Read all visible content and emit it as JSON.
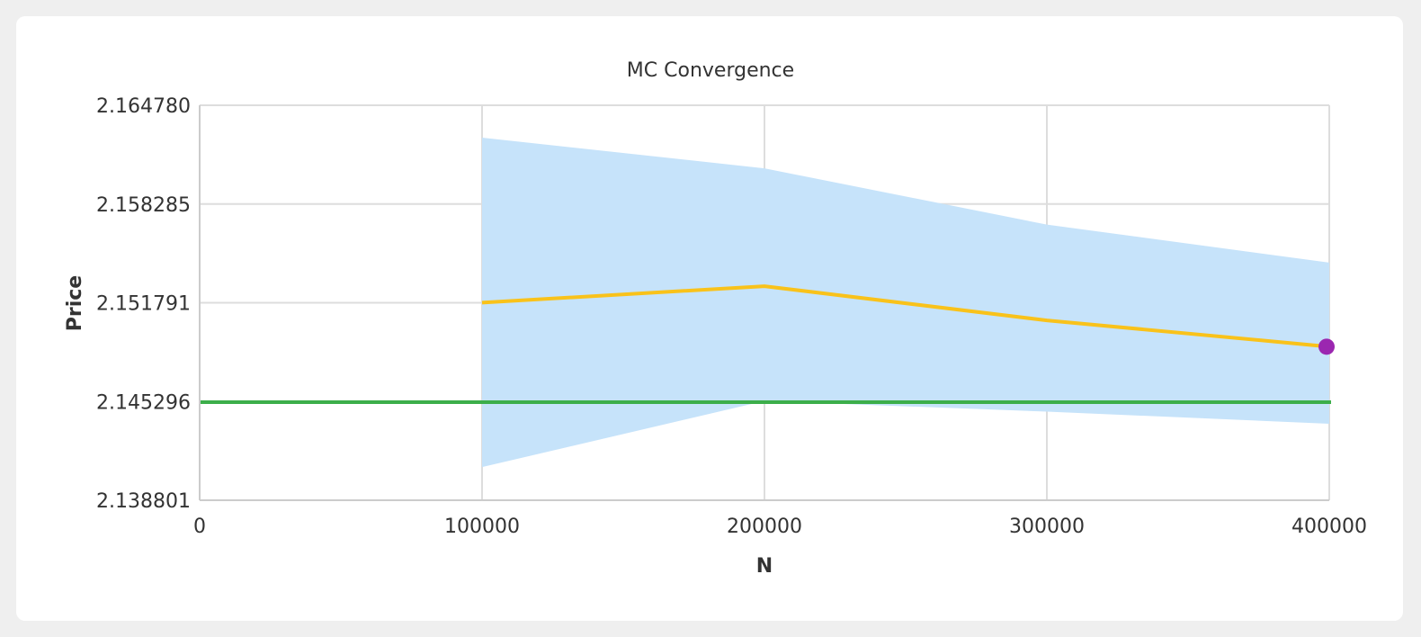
{
  "chart_data": {
    "type": "line",
    "title": "MC Convergence",
    "xlabel": "N",
    "ylabel": "Price",
    "xlim": [
      0,
      400000
    ],
    "ylim": [
      2.1388,
      2.16478
    ],
    "x_ticks": [
      "0",
      "100000",
      "200000",
      "300000",
      "400000"
    ],
    "y_ticks": [
      "2.164780",
      "2.158285",
      "2.151791",
      "2.145296",
      "2.138801"
    ],
    "grid": true,
    "legend": "none",
    "series": [
      {
        "kind": "band",
        "color": "#c6e3fa",
        "points": [
          {
            "x": 100000,
            "lower": 2.14098,
            "upper": 2.16265
          },
          {
            "x": 200000,
            "lower": 2.14533,
            "upper": 2.16063
          },
          {
            "x": 300000,
            "lower": 2.14463,
            "upper": 2.15693
          },
          {
            "x": 400000,
            "lower": 2.14383,
            "upper": 2.15443
          }
        ]
      },
      {
        "kind": "line",
        "color": "#f9c21a",
        "points": [
          {
            "x": 100000,
            "y": 2.1518
          },
          {
            "x": 200000,
            "y": 2.15288
          },
          {
            "x": 300000,
            "y": 2.15063
          },
          {
            "x": 400000,
            "y": 2.1489
          }
        ]
      },
      {
        "kind": "hline",
        "color": "#3cae4a",
        "y": 2.14525
      },
      {
        "kind": "point",
        "color": "#9b27b0",
        "x": 400000,
        "y": 2.1489
      }
    ],
    "axis_color": "#cccccc",
    "grid_color": "#dddddd"
  }
}
